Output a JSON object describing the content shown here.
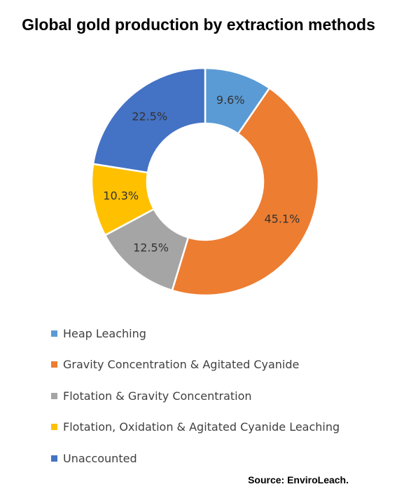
{
  "chart_data": {
    "type": "pie",
    "title": "Global gold production by extraction methods",
    "categories": [
      "Heap Leaching",
      "Gravity Concentration & Agitated Cyanide",
      "Flotation & Gravity Concentration",
      "Flotation, Oxidation & Agitated Cyanide Leaching",
      "Unaccounted"
    ],
    "values": [
      9.6,
      45.1,
      12.5,
      10.3,
      22.5
    ],
    "labels": [
      "9.6%",
      "45.1%",
      "12.5%",
      "10.3%",
      "22.5%"
    ],
    "colors": [
      "#5b9bd5",
      "#ed7d31",
      "#a5a5a5",
      "#ffc000",
      "#4472c4"
    ],
    "donut": true,
    "legend_position": "bottom-left"
  },
  "source": "Source: EnviroLeach."
}
